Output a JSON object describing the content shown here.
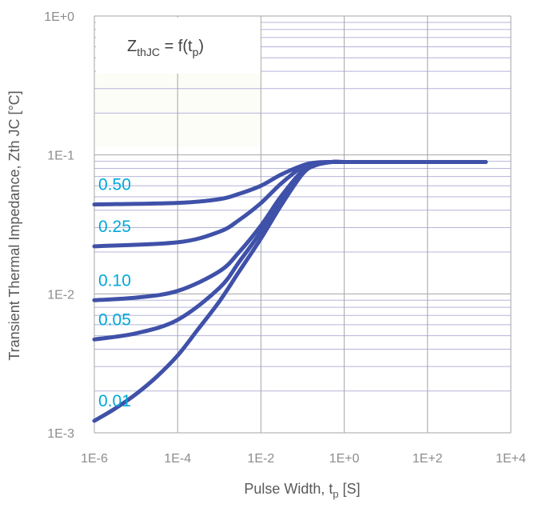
{
  "chart_data": {
    "type": "line",
    "x_scale": "log",
    "y_scale": "log",
    "xlim": [
      1e-06,
      10000
    ],
    "ylim": [
      0.001,
      1
    ],
    "xlabel": "Pulse Width, t",
    "xlabel_sub": "p",
    "xlabel_suffix": " [S]",
    "ylabel": "Transient Thermal Impedance, Zth JC [°C]",
    "x_ticks": [
      {
        "value": 1e-06,
        "label": "1E-6"
      },
      {
        "value": 0.0001,
        "label": "1E-4"
      },
      {
        "value": 0.01,
        "label": "1E-2"
      },
      {
        "value": 1,
        "label": "1E+0"
      },
      {
        "value": 100,
        "label": "1E+2"
      },
      {
        "value": 10000,
        "label": "1E+4"
      }
    ],
    "y_ticks": [
      {
        "value": 0.001,
        "label": "1E-3"
      },
      {
        "value": 0.01,
        "label": "1E-2"
      },
      {
        "value": 0.1,
        "label": "1E-1"
      },
      {
        "value": 1,
        "label": "1E+0"
      }
    ],
    "annotation": {
      "main": "Z",
      "sub": "thJC",
      "rest": " = f(t",
      "sub2": "p",
      "close": ")"
    },
    "grid": true,
    "colors": {
      "line": "#3f51a8",
      "label": "#00a8d8",
      "major_grid": "#a6a6a6",
      "minor_grid": "#b4b4dc",
      "tick": "#8c8c8c"
    },
    "series": [
      {
        "name": "0.50",
        "x": [
          1e-06,
          0.0001,
          0.001,
          0.003,
          0.01,
          0.03,
          0.1,
          0.2,
          0.5,
          1,
          10,
          100,
          2500
        ],
        "y": [
          0.044,
          0.0452,
          0.048,
          0.0525,
          0.06,
          0.072,
          0.084,
          0.088,
          0.089,
          0.089,
          0.089,
          0.089,
          0.089
        ]
      },
      {
        "name": "0.25",
        "x": [
          1e-06,
          0.0001,
          0.001,
          0.003,
          0.01,
          0.03,
          0.1,
          0.2,
          0.5,
          1,
          10,
          100,
          2500
        ],
        "y": [
          0.022,
          0.0235,
          0.028,
          0.034,
          0.045,
          0.062,
          0.082,
          0.087,
          0.089,
          0.089,
          0.089,
          0.089,
          0.089
        ]
      },
      {
        "name": "0.10",
        "x": [
          1e-06,
          1e-05,
          0.0001,
          0.001,
          0.003,
          0.01,
          0.03,
          0.1,
          0.2,
          0.5,
          1,
          10,
          100,
          2500
        ],
        "y": [
          0.009,
          0.0094,
          0.0105,
          0.0145,
          0.02,
          0.031,
          0.05,
          0.077,
          0.086,
          0.089,
          0.089,
          0.089,
          0.089,
          0.089
        ]
      },
      {
        "name": "0.05",
        "x": [
          1e-06,
          1e-05,
          0.0001,
          0.001,
          0.003,
          0.01,
          0.03,
          0.1,
          0.2,
          0.5,
          1,
          10,
          100,
          2500
        ],
        "y": [
          0.0047,
          0.0052,
          0.0065,
          0.011,
          0.017,
          0.028,
          0.047,
          0.075,
          0.085,
          0.089,
          0.089,
          0.089,
          0.089,
          0.089
        ]
      },
      {
        "name": "0.01",
        "x": [
          1e-06,
          3e-06,
          1e-05,
          3e-05,
          0.0001,
          0.0003,
          0.001,
          0.003,
          0.01,
          0.03,
          0.1,
          0.2,
          0.5,
          1,
          10,
          100,
          2500
        ],
        "y": [
          0.00122,
          0.00148,
          0.0019,
          0.0025,
          0.0036,
          0.0055,
          0.0088,
          0.0145,
          0.025,
          0.043,
          0.073,
          0.084,
          0.089,
          0.089,
          0.089,
          0.089,
          0.089
        ]
      }
    ]
  }
}
